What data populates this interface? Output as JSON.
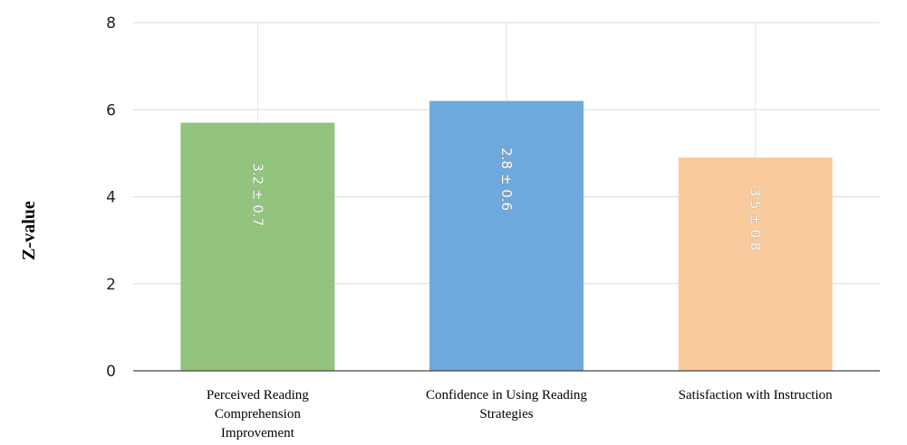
{
  "chart_data": {
    "type": "bar",
    "categories": [
      [
        "Perceived Reading",
        "Comprehension",
        "Improvement"
      ],
      [
        "Confidence in Using Reading",
        "Strategies"
      ],
      [
        "Satisfaction with Instruction"
      ]
    ],
    "values": [
      5.7,
      6.2,
      4.9
    ],
    "data_labels": [
      "3.2 ± 0.7",
      "2.8 ± 0.6",
      "3.5 ± 0.8"
    ],
    "colors": [
      "#93c47d",
      "#6fa8dc",
      "#f9cb9c"
    ],
    "ylabel": "Z-value",
    "xlabel": "",
    "ylim": [
      0,
      8
    ],
    "yticks": [
      0,
      2,
      4,
      6,
      8
    ],
    "grid": true,
    "legend": "none"
  }
}
